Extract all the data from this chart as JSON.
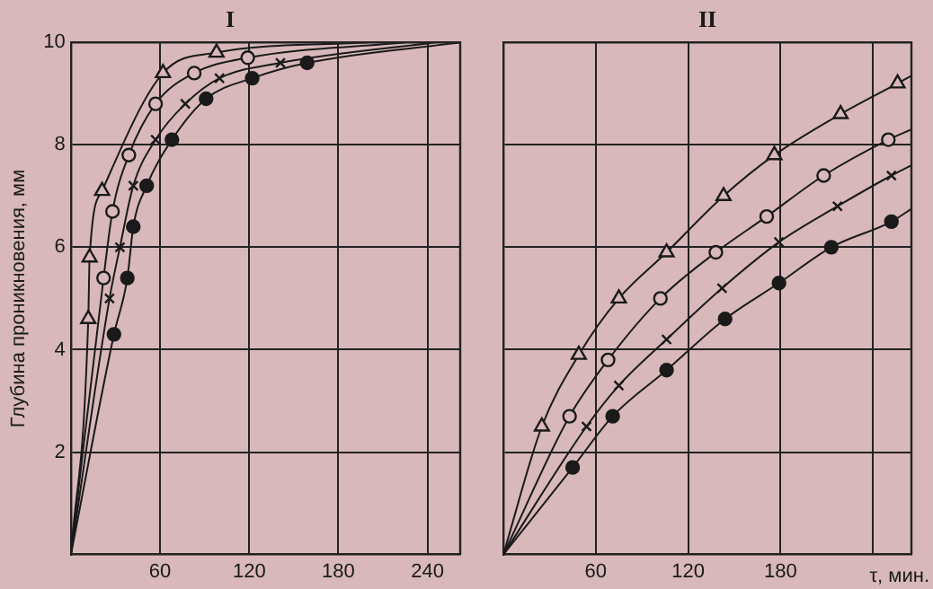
{
  "chart_data": [
    {
      "type": "line",
      "title": "I",
      "ylabel": "Глубина проникновения, мм",
      "xlim": [
        0,
        262
      ],
      "ylim": [
        0,
        10
      ],
      "xticks": [
        60,
        120,
        180,
        240
      ],
      "yticks": [
        2,
        4,
        6,
        8,
        10
      ],
      "grid": true,
      "legend": false,
      "series": [
        {
          "marker": "triangle",
          "color": "#1a1a1a",
          "x": [
            0,
            11.7,
            12.6,
            21,
            62,
            98,
            200
          ],
          "values": [
            0,
            4.6,
            5.8,
            7.1,
            9.4,
            9.8,
            10
          ]
        },
        {
          "marker": "circle",
          "color": "#1a1a1a",
          "x": [
            0,
            22,
            28,
            39,
            57,
            83,
            119,
            225
          ],
          "values": [
            0,
            5.4,
            6.7,
            7.8,
            8.8,
            9.4,
            9.7,
            10
          ]
        },
        {
          "marker": "cross",
          "color": "#1a1a1a",
          "x": [
            0,
            26,
            33,
            42,
            57,
            77,
            100,
            141,
            245
          ],
          "values": [
            0,
            5.0,
            6.0,
            7.2,
            8.1,
            8.8,
            9.3,
            9.6,
            10
          ]
        },
        {
          "marker": "circle",
          "color": "#1a1a1a",
          "x": [
            0,
            29,
            38,
            42,
            51,
            68,
            91,
            122,
            159,
            262
          ],
          "values": [
            0,
            4.3,
            5.4,
            6.4,
            7.2,
            8.1,
            8.9,
            9.3,
            9.6,
            10
          ]
        }
      ]
    },
    {
      "type": "line",
      "title": "II",
      "xlabel": "τ, мин.",
      "xlim": [
        0,
        265
      ],
      "ylim": [
        0,
        10
      ],
      "xticks": [
        60,
        120,
        180,
        {
          "value": 240,
          "label": null
        }
      ],
      "yticks": [
        2,
        4,
        6,
        8,
        10
      ],
      "tick_labels": "x",
      "grid": true,
      "legend": false,
      "series": [
        {
          "marker": "triangle",
          "color": "#1a1a1a",
          "x": [
            0,
            25,
            49,
            75,
            106,
            143,
            176,
            219,
            256,
            265
          ],
          "values": [
            0,
            2.5,
            3.9,
            5.0,
            5.9,
            7.0,
            7.8,
            8.6,
            9.2,
            9.35
          ]
        },
        {
          "marker": "circle",
          "color": "#1a1a1a",
          "x": [
            0,
            43,
            68,
            102,
            138,
            171,
            208,
            250,
            265
          ],
          "values": [
            0,
            2.7,
            3.8,
            5.0,
            5.9,
            6.6,
            7.4,
            8.1,
            8.3
          ]
        },
        {
          "marker": "cross",
          "color": "#1a1a1a",
          "x": [
            0,
            54,
            75,
            106,
            142,
            179,
            217,
            252,
            265
          ],
          "values": [
            0,
            2.5,
            3.3,
            4.2,
            5.2,
            6.1,
            6.8,
            7.4,
            7.6
          ]
        },
        {
          "marker": "circle",
          "color": "#1a1a1a",
          "x": [
            0,
            45,
            71,
            106,
            144,
            179,
            213,
            252,
            265
          ],
          "values": [
            0,
            1.7,
            2.7,
            3.6,
            4.6,
            5.3,
            6.0,
            6.5,
            6.75
          ]
        }
      ]
    }
  ]
}
